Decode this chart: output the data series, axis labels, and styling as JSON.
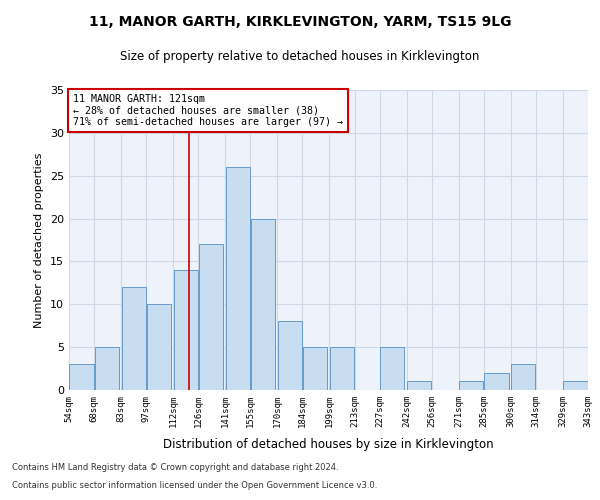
{
  "title": "11, MANOR GARTH, KIRKLEVINGTON, YARM, TS15 9LG",
  "subtitle": "Size of property relative to detached houses in Kirklevington",
  "xlabel": "Distribution of detached houses by size in Kirklevington",
  "ylabel": "Number of detached properties",
  "bar_color": "#c9ddf0",
  "bar_edge_color": "#6699cc",
  "bg_color": "#eef2fa",
  "grid_color": "#d0d8e8",
  "bins": [
    54,
    68,
    83,
    97,
    112,
    126,
    141,
    155,
    170,
    184,
    199,
    213,
    227,
    242,
    256,
    271,
    285,
    300,
    314,
    329,
    343
  ],
  "counts": [
    3,
    5,
    12,
    10,
    14,
    17,
    26,
    20,
    8,
    5,
    5,
    0,
    5,
    1,
    0,
    1,
    2,
    3,
    0,
    1
  ],
  "property_size": 121,
  "annotation_text": "11 MANOR GARTH: 121sqm\n← 28% of detached houses are smaller (38)\n71% of semi-detached houses are larger (97) →",
  "vline_color": "#cc0000",
  "annotation_box_color": "#cc0000",
  "footnote1": "Contains HM Land Registry data © Crown copyright and database right 2024.",
  "footnote2": "Contains public sector information licensed under the Open Government Licence v3.0.",
  "ylim": [
    0,
    35
  ],
  "yticks": [
    0,
    5,
    10,
    15,
    20,
    25,
    30,
    35
  ]
}
